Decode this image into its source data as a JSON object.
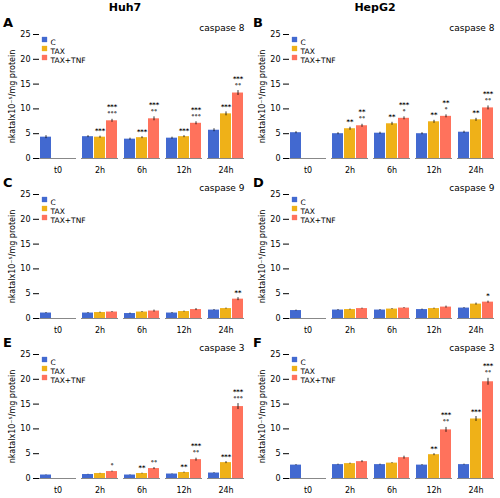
{
  "chart_data": [
    {
      "type": "bar",
      "title": "A",
      "subtitle": "Huh7",
      "ylabel": "nkatalx10⁻⁵/mg protein",
      "categories": [
        "t0",
        "2h",
        "6h",
        "12h",
        "24h"
      ],
      "series": [
        {
          "name": "C",
          "values": [
            4.3,
            4.4,
            3.9,
            4.1,
            5.7
          ],
          "errors": [
            0.3,
            0.2,
            0.2,
            0.2,
            0.3
          ]
        },
        {
          "name": "TAX",
          "values": [
            null,
            4.3,
            4.2,
            4.4,
            9.0
          ],
          "errors": [
            null,
            0.2,
            0.2,
            0.2,
            0.4
          ]
        },
        {
          "name": "TAX+TNF",
          "values": [
            null,
            7.6,
            8.0,
            7.1,
            13.2
          ],
          "errors": [
            null,
            0.3,
            0.4,
            0.3,
            0.5
          ]
        }
      ],
      "ylim": [
        0,
        25
      ],
      "yticks": [
        0,
        5,
        10,
        15,
        20,
        25
      ],
      "legend": "upper left",
      "annotations": [
        {
          "text": "caspase 8"
        },
        {
          "text": "***",
          "category": "2h",
          "series": "TAX"
        },
        {
          "text": "°°°",
          "category": "2h",
          "series": "TAX+TNF"
        },
        {
          "text": "***",
          "category": "2h",
          "series": "TAX+TNF"
        },
        {
          "text": "***",
          "category": "6h",
          "series": "TAX"
        },
        {
          "text": "°°",
          "category": "6h",
          "series": "TAX+TNF"
        },
        {
          "text": "***",
          "category": "6h",
          "series": "TAX+TNF"
        },
        {
          "text": "***",
          "category": "12h",
          "series": "TAX"
        },
        {
          "text": "°°°",
          "category": "12h",
          "series": "TAX+TNF"
        },
        {
          "text": "***",
          "category": "12h",
          "series": "TAX+TNF"
        },
        {
          "text": "***",
          "category": "24h",
          "series": "TAX"
        },
        {
          "text": "°°",
          "category": "24h",
          "series": "TAX+TNF"
        },
        {
          "text": "***",
          "category": "24h",
          "series": "TAX+TNF"
        }
      ]
    },
    {
      "type": "bar",
      "title": "B",
      "subtitle": "HepG2",
      "ylabel": "nkatalx10⁻⁵/mg protein",
      "categories": [
        "t0",
        "2h",
        "6h",
        "12h",
        "24h"
      ],
      "series": [
        {
          "name": "C",
          "values": [
            5.2,
            5.0,
            5.1,
            5.0,
            5.3
          ],
          "errors": [
            0.2,
            0.2,
            0.2,
            0.2,
            0.2
          ]
        },
        {
          "name": "TAX",
          "values": [
            null,
            6.0,
            7.0,
            7.4,
            7.8
          ],
          "errors": [
            null,
            0.3,
            0.3,
            0.3,
            0.3
          ]
        },
        {
          "name": "TAX+TNF",
          "values": [
            null,
            6.6,
            8.1,
            8.5,
            10.2
          ],
          "errors": [
            null,
            0.3,
            0.3,
            0.3,
            0.4
          ]
        }
      ],
      "ylim": [
        0,
        25
      ],
      "yticks": [
        0,
        5,
        10,
        15,
        20,
        25
      ],
      "legend": "upper left",
      "annotations": [
        {
          "text": "caspase 8"
        },
        {
          "text": "**",
          "category": "2h",
          "series": "TAX"
        },
        {
          "text": "°°",
          "category": "2h",
          "series": "TAX+TNF"
        },
        {
          "text": "**",
          "category": "2h",
          "series": "TAX+TNF"
        },
        {
          "text": "**",
          "category": "6h",
          "series": "TAX"
        },
        {
          "text": "°",
          "category": "6h",
          "series": "TAX+TNF"
        },
        {
          "text": "***",
          "category": "6h",
          "series": "TAX+TNF"
        },
        {
          "text": "**",
          "category": "12h",
          "series": "TAX"
        },
        {
          "text": "°",
          "category": "12h",
          "series": "TAX+TNF"
        },
        {
          "text": "**",
          "category": "12h",
          "series": "TAX+TNF"
        },
        {
          "text": "**",
          "category": "24h",
          "series": "TAX"
        },
        {
          "text": "°°",
          "category": "24h",
          "series": "TAX+TNF"
        },
        {
          "text": "***",
          "category": "24h",
          "series": "TAX+TNF"
        }
      ]
    },
    {
      "type": "bar",
      "title": "C",
      "ylabel": "nkatalx10⁻⁵/mg protein",
      "categories": [
        "t0",
        "2h",
        "6h",
        "12h",
        "24h"
      ],
      "series": [
        {
          "name": "C",
          "values": [
            1.1,
            1.1,
            1.0,
            1.1,
            1.7
          ],
          "errors": [
            0.1,
            0.1,
            0.1,
            0.1,
            0.1
          ]
        },
        {
          "name": "TAX",
          "values": [
            null,
            1.2,
            1.3,
            1.4,
            2.0
          ],
          "errors": [
            null,
            0.1,
            0.1,
            0.1,
            0.1
          ]
        },
        {
          "name": "TAX+TNF",
          "values": [
            null,
            1.3,
            1.5,
            1.8,
            3.9
          ],
          "errors": [
            null,
            0.1,
            0.2,
            0.2,
            0.3
          ]
        }
      ],
      "ylim": [
        0,
        25
      ],
      "yticks": [
        0,
        5,
        10,
        15,
        20,
        25
      ],
      "legend": "upper left",
      "annotations": [
        {
          "text": "caspase 9"
        },
        {
          "text": "**",
          "category": "24h",
          "series": "TAX+TNF"
        }
      ]
    },
    {
      "type": "bar",
      "title": "D",
      "ylabel": "nkatalx10⁻⁵/mg protein",
      "categories": [
        "t0",
        "2h",
        "6h",
        "12h",
        "24h"
      ],
      "series": [
        {
          "name": "C",
          "values": [
            1.6,
            1.7,
            1.7,
            1.8,
            2.1
          ],
          "errors": [
            0.1,
            0.1,
            0.1,
            0.1,
            0.1
          ]
        },
        {
          "name": "TAX",
          "values": [
            null,
            1.8,
            1.9,
            2.0,
            2.9
          ],
          "errors": [
            null,
            0.1,
            0.1,
            0.1,
            0.2
          ]
        },
        {
          "name": "TAX+TNF",
          "values": [
            null,
            2.0,
            2.1,
            2.3,
            3.3
          ],
          "errors": [
            null,
            0.1,
            0.1,
            0.2,
            0.2
          ]
        }
      ],
      "ylim": [
        0,
        25
      ],
      "yticks": [
        0,
        5,
        10,
        15,
        20,
        25
      ],
      "legend": "upper left",
      "annotations": [
        {
          "text": "caspase 9"
        },
        {
          "text": "*",
          "category": "24h",
          "series": "TAX+TNF"
        }
      ]
    },
    {
      "type": "bar",
      "title": "E",
      "ylabel": "nkatalx10⁻⁵/mg protein",
      "categories": [
        "t0",
        "2h",
        "6h",
        "12h",
        "24h"
      ],
      "series": [
        {
          "name": "C",
          "values": [
            0.7,
            0.8,
            0.7,
            0.9,
            1.1
          ],
          "errors": [
            0.05,
            0.05,
            0.05,
            0.05,
            0.08
          ]
        },
        {
          "name": "TAX",
          "values": [
            null,
            1.0,
            1.0,
            1.2,
            3.2
          ],
          "errors": [
            null,
            0.05,
            0.08,
            0.1,
            0.2
          ]
        },
        {
          "name": "TAX+TNF",
          "values": [
            null,
            1.4,
            2.0,
            3.8,
            14.5
          ],
          "errors": [
            null,
            0.1,
            0.2,
            0.3,
            0.6
          ]
        }
      ],
      "ylim": [
        0,
        25
      ],
      "yticks": [
        0,
        5,
        10,
        15,
        20,
        25
      ],
      "legend": "upper left",
      "annotations": [
        {
          "text": "caspase 3"
        },
        {
          "text": "°",
          "category": "2h",
          "series": "TAX+TNF"
        },
        {
          "text": "**",
          "category": "6h",
          "series": "TAX"
        },
        {
          "text": "°°",
          "category": "6h",
          "series": "TAX+TNF"
        },
        {
          "text": "**",
          "category": "12h",
          "series": "TAX"
        },
        {
          "text": "°°",
          "category": "12h",
          "series": "TAX+TNF"
        },
        {
          "text": "***",
          "category": "12h",
          "series": "TAX+TNF"
        },
        {
          "text": "***",
          "category": "24h",
          "series": "TAX"
        },
        {
          "text": "°°°",
          "category": "24h",
          "series": "TAX+TNF"
        },
        {
          "text": "***",
          "category": "24h",
          "series": "TAX+TNF"
        }
      ]
    },
    {
      "type": "bar",
      "title": "F",
      "ylabel": "nkatalx10⁻⁵/mg protein",
      "categories": [
        "t0",
        "2h",
        "6h",
        "12h",
        "24h"
      ],
      "series": [
        {
          "name": "C",
          "values": [
            2.7,
            2.8,
            2.8,
            2.7,
            2.8
          ],
          "errors": [
            0.1,
            0.1,
            0.1,
            0.1,
            0.1
          ]
        },
        {
          "name": "TAX",
          "values": [
            null,
            3.0,
            3.1,
            4.8,
            12.0
          ],
          "errors": [
            null,
            0.1,
            0.1,
            0.2,
            0.5
          ]
        },
        {
          "name": "TAX+TNF",
          "values": [
            null,
            3.4,
            4.2,
            9.8,
            19.5
          ],
          "errors": [
            null,
            0.2,
            0.3,
            0.5,
            0.7
          ]
        }
      ],
      "ylim": [
        0,
        25
      ],
      "yticks": [
        0,
        5,
        10,
        15,
        20,
        25
      ],
      "legend": "upper left",
      "annotations": [
        {
          "text": "caspase 3"
        },
        {
          "text": "**",
          "category": "12h",
          "series": "TAX"
        },
        {
          "text": "°°",
          "category": "12h",
          "series": "TAX+TNF"
        },
        {
          "text": "***",
          "category": "12h",
          "series": "TAX+TNF"
        },
        {
          "text": "***",
          "category": "24h",
          "series": "TAX"
        },
        {
          "text": "°°",
          "category": "24h",
          "series": "TAX+TNF"
        },
        {
          "text": "***",
          "category": "24h",
          "series": "TAX+TNF"
        }
      ]
    }
  ]
}
